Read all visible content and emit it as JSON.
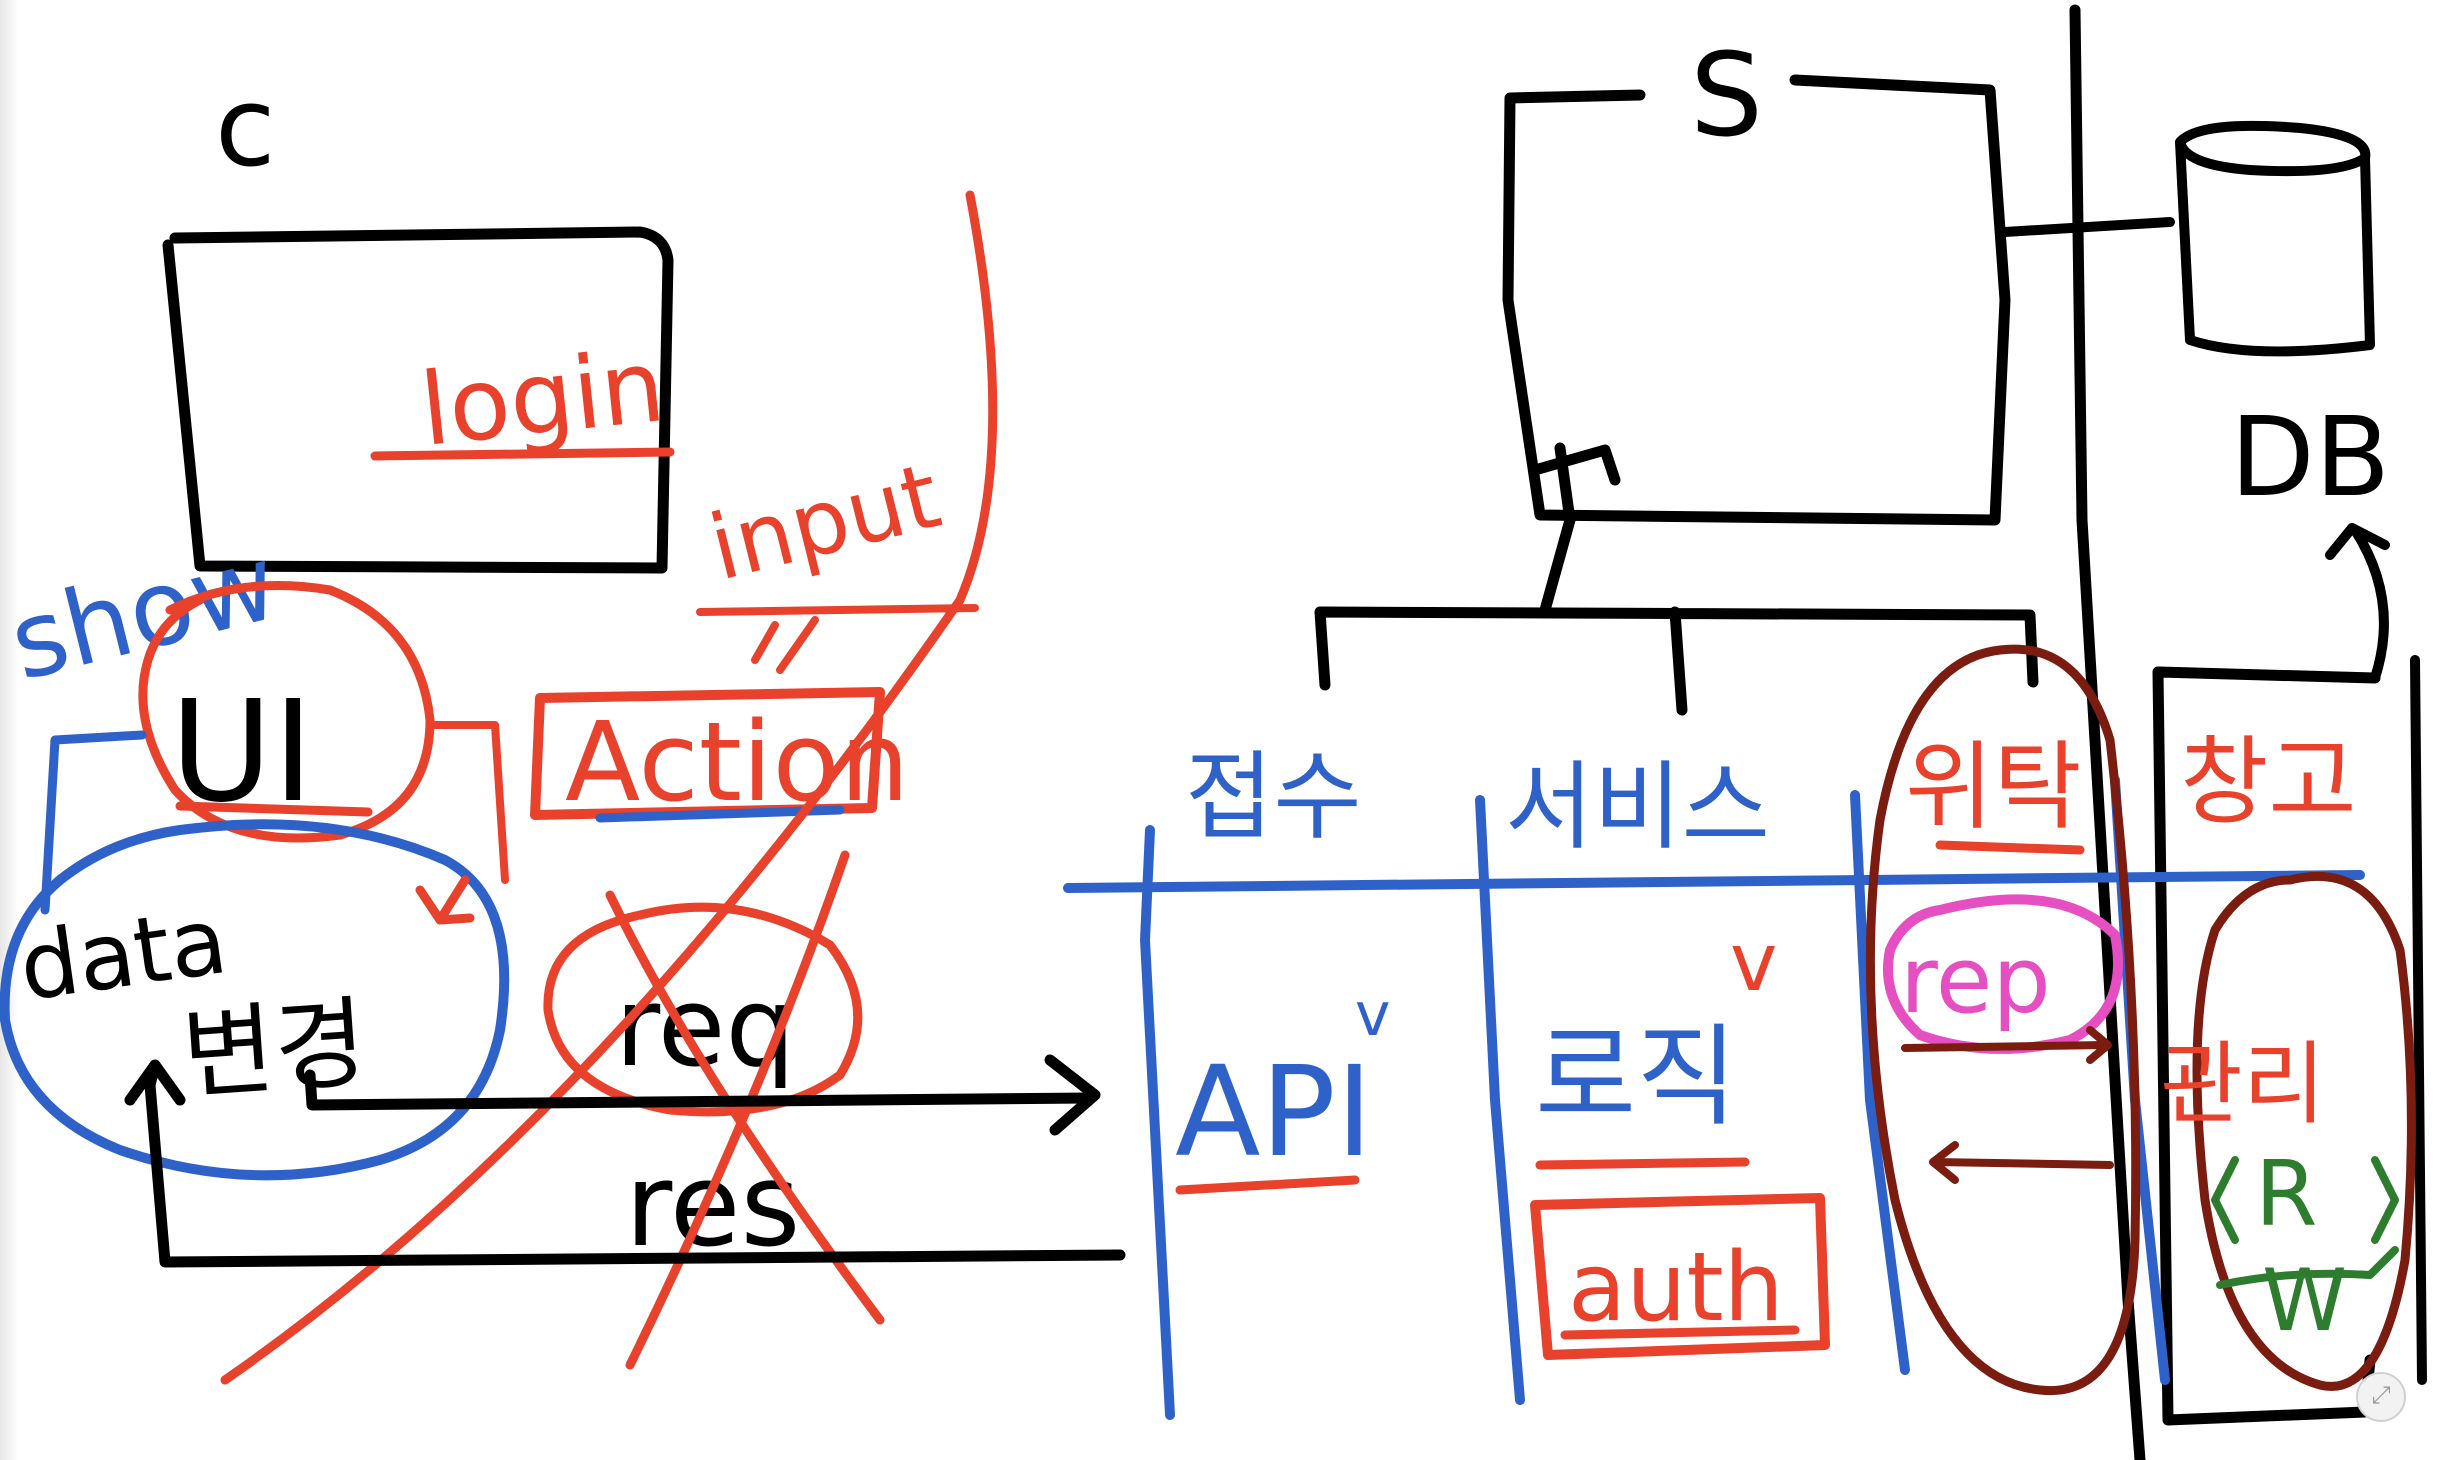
{
  "colors": {
    "black": "#000000",
    "red": "#e8412c",
    "blue": "#2f62c9",
    "maroon": "#7a1c10",
    "pink": "#e64fc2",
    "green": "#2e7d2e"
  },
  "client": {
    "label": "c",
    "login": "login",
    "input": "input",
    "show": "show",
    "ui": "UI",
    "action": "Action",
    "data": "data",
    "change": "변경",
    "req": "req",
    "res": "res"
  },
  "server": {
    "label": "S",
    "db": "DB",
    "layers": {
      "reception": "접수",
      "service": "서비스",
      "consign": "위탁",
      "warehouse": "창고"
    },
    "api": "API",
    "check": "v",
    "logic": "로직",
    "auth": "auth",
    "rep": "rep",
    "manage": "관리",
    "read": "R",
    "write": "W"
  },
  "icons": {
    "corner": "expand-corner-icon"
  }
}
